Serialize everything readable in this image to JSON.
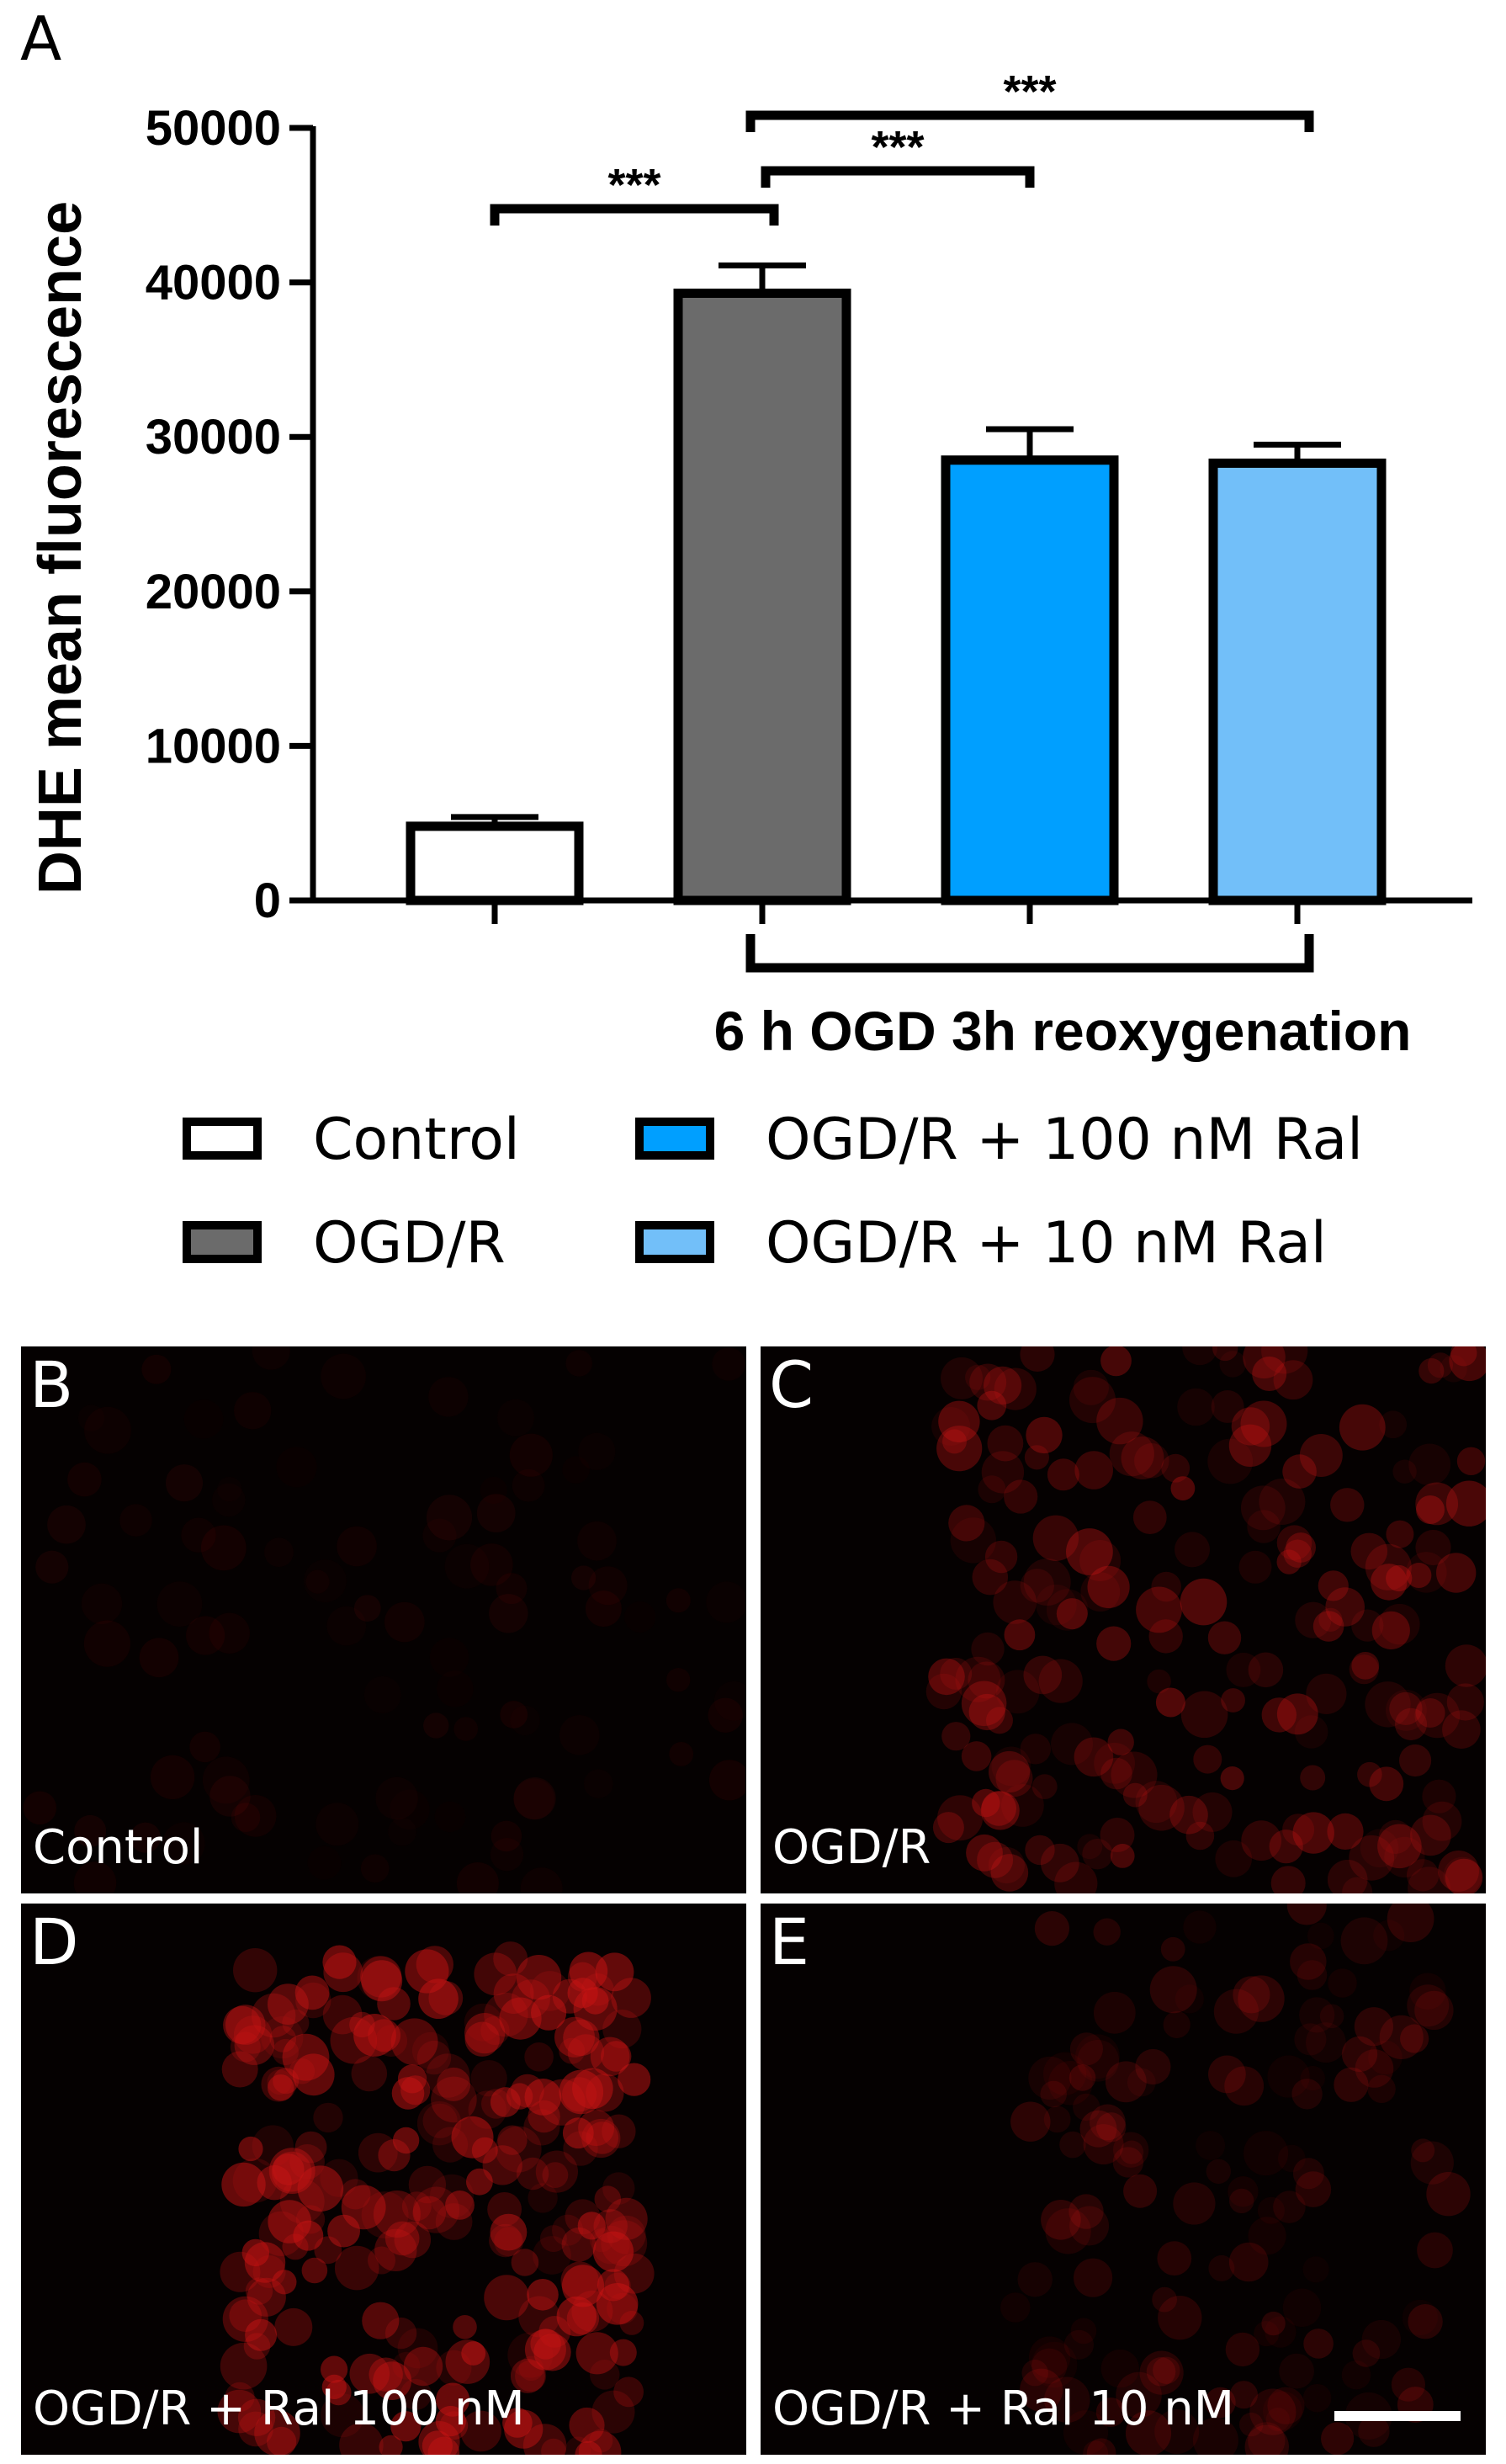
{
  "panel_a": {
    "letter": "A"
  },
  "chart_data": {
    "type": "bar",
    "ylabel": "DHE mean fluorescence",
    "xlabel": "",
    "ylim": [
      0,
      50000
    ],
    "yticks": [
      0,
      10000,
      20000,
      30000,
      40000,
      50000
    ],
    "ytick_labels": [
      "0",
      "10000",
      "20000",
      "30000",
      "40000",
      "50000"
    ],
    "categories": [
      "Control",
      "OGD/R",
      "OGD/R + 100 nM Ral",
      "OGD/R + 10 nM Ral"
    ],
    "values": [
      4800,
      39300,
      28500,
      28300
    ],
    "errors": [
      600,
      1800,
      2000,
      1200
    ],
    "colors": [
      "#ffffff",
      "#6b6b6b",
      "#009fff",
      "#72bff9"
    ],
    "significance": [
      {
        "from": 0,
        "to": 1,
        "label": "***"
      },
      {
        "from": 1,
        "to": 2,
        "label": "***"
      },
      {
        "from": 1,
        "to": 3,
        "label": "***"
      }
    ],
    "group_bracket": {
      "from": 1,
      "to": 3,
      "label": "6 h OGD 3h reoxygenation"
    },
    "legend": [
      {
        "name": "Control",
        "color": "#ffffff"
      },
      {
        "name": "OGD/R + 100 nM Ral",
        "color": "#009fff"
      },
      {
        "name": "OGD/R",
        "color": "#6b6b6b"
      },
      {
        "name": "OGD/R + 10 nM Ral",
        "color": "#72bff9"
      }
    ],
    "legend_position": "bottom"
  },
  "micrographs": [
    {
      "letter": "B",
      "label": "Control",
      "intensity": 0.12
    },
    {
      "letter": "C",
      "label": "OGD/R",
      "intensity": 0.55
    },
    {
      "letter": "D",
      "label": "OGD/R + Ral 100 nM",
      "intensity": 0.75
    },
    {
      "letter": "E",
      "label": "OGD/R + Ral 10 nM",
      "intensity": 0.3
    }
  ]
}
